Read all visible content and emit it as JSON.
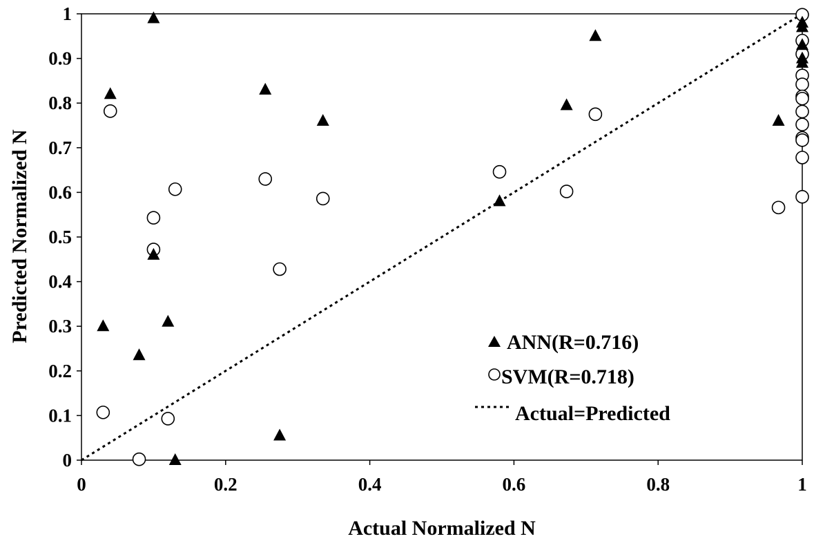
{
  "chart_data": {
    "type": "scatter",
    "title": "",
    "xlabel": "Actual Normalized N",
    "ylabel": "Predicted Normalized N",
    "xlim": [
      0,
      1
    ],
    "ylim": [
      0,
      1
    ],
    "x_ticks": [
      "0",
      "0.2",
      "0.4",
      "0.6",
      "0.8",
      "1"
    ],
    "y_ticks": [
      "0",
      "0.1",
      "0.2",
      "0.3",
      "0.4",
      "0.5",
      "0.6",
      "0.7",
      "0.8",
      "0.9",
      "1"
    ],
    "grid": false,
    "legend_position": "bottom-right",
    "series": [
      {
        "name": "ANN(R=0.716)",
        "marker": "filled-triangle",
        "color": "#000000",
        "points": [
          [
            0.03,
            0.3
          ],
          [
            0.04,
            0.82
          ],
          [
            0.08,
            0.235
          ],
          [
            0.1,
            0.99
          ],
          [
            0.1,
            0.46
          ],
          [
            0.12,
            0.31
          ],
          [
            0.13,
            0.0
          ],
          [
            0.255,
            0.83
          ],
          [
            0.275,
            0.055
          ],
          [
            0.335,
            0.76
          ],
          [
            0.58,
            0.58
          ],
          [
            0.673,
            0.795
          ],
          [
            0.713,
            0.95
          ],
          [
            0.967,
            0.76
          ],
          [
            1.0,
            0.98
          ],
          [
            1.0,
            0.97
          ],
          [
            1.0,
            0.93
          ],
          [
            1.0,
            0.9
          ],
          [
            1.0,
            0.89
          ]
        ]
      },
      {
        "name": "SVM(R=0.718)",
        "marker": "open-circle",
        "color": "#000000",
        "points": [
          [
            0.03,
            0.107
          ],
          [
            0.04,
            0.782
          ],
          [
            0.08,
            0.002
          ],
          [
            0.1,
            0.543
          ],
          [
            0.1,
            0.472
          ],
          [
            0.12,
            0.093
          ],
          [
            0.13,
            0.607
          ],
          [
            0.255,
            0.63
          ],
          [
            0.275,
            0.428
          ],
          [
            0.335,
            0.586
          ],
          [
            0.58,
            0.646
          ],
          [
            0.673,
            0.602
          ],
          [
            0.713,
            0.775
          ],
          [
            0.967,
            0.566
          ],
          [
            1.0,
            0.998
          ],
          [
            1.0,
            0.94
          ],
          [
            1.0,
            0.91
          ],
          [
            1.0,
            0.862
          ],
          [
            1.0,
            0.842
          ],
          [
            1.0,
            0.815
          ],
          [
            1.0,
            0.81
          ],
          [
            1.0,
            0.781
          ],
          [
            1.0,
            0.752
          ],
          [
            1.0,
            0.722
          ],
          [
            1.0,
            0.717
          ],
          [
            1.0,
            0.678
          ],
          [
            1.0,
            0.59
          ]
        ]
      },
      {
        "name": "Actual=Predicted",
        "marker": "dotted-line",
        "color": "#000000",
        "points": [
          [
            0,
            0
          ],
          [
            1,
            1
          ]
        ]
      }
    ]
  }
}
